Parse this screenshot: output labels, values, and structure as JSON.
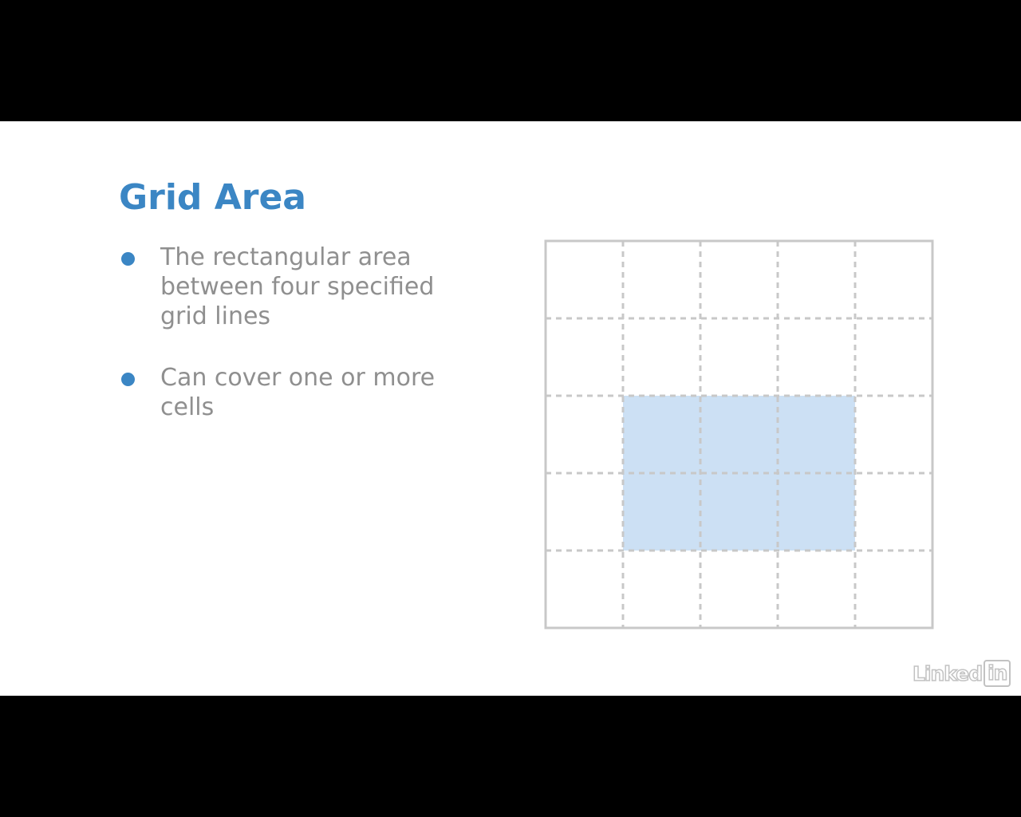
{
  "slide": {
    "title": "Grid Area",
    "bullets": [
      "The rectangular area between four specified grid lines",
      "Can cover one or more cells"
    ]
  },
  "diagram": {
    "rows": 5,
    "columns": 5,
    "highlighted_area": {
      "row_start": 3,
      "row_end": 5,
      "column_start": 2,
      "column_end": 5
    }
  },
  "logo": {
    "word": "Linked",
    "box": "in"
  },
  "colors": {
    "title": "#3b86c4",
    "bullet_dot": "#3b86c4",
    "bullet_text": "#8f8f8f",
    "grid_line": "#c8c8c8",
    "highlight": "#cce0f4",
    "background": "#ffffff",
    "letterbox": "#000000"
  }
}
